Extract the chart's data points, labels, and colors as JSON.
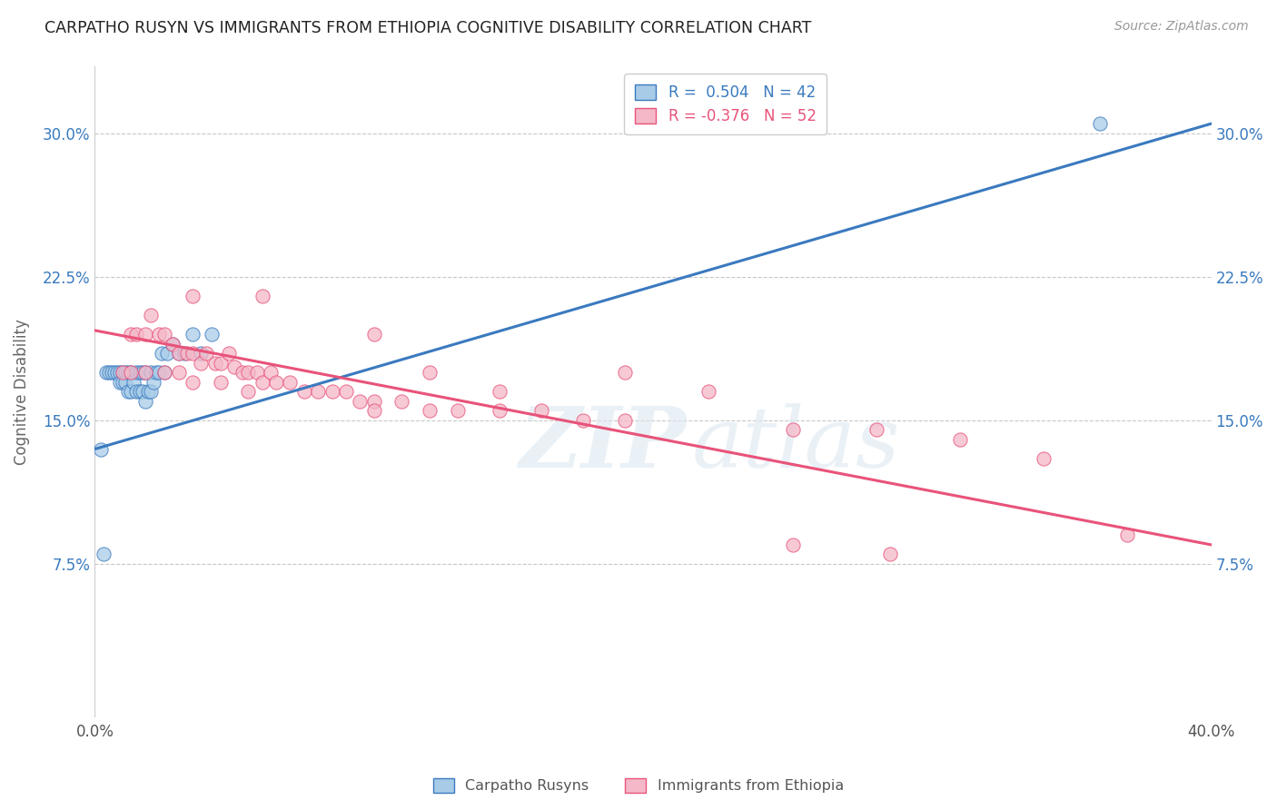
{
  "title": "CARPATHO RUSYN VS IMMIGRANTS FROM ETHIOPIA COGNITIVE DISABILITY CORRELATION CHART",
  "source": "Source: ZipAtlas.com",
  "ylabel": "Cognitive Disability",
  "x_tick_labels": [
    "0.0%",
    "",
    "",
    "",
    "",
    "",
    "",
    "",
    "40.0%"
  ],
  "y_ticks": [
    0.075,
    0.15,
    0.225,
    0.3
  ],
  "y_tick_labels": [
    "7.5%",
    "15.0%",
    "22.5%",
    "30.0%"
  ],
  "xlim": [
    0.0,
    0.4
  ],
  "ylim": [
    -0.005,
    0.335
  ],
  "blue_R": 0.504,
  "blue_N": 42,
  "pink_R": -0.376,
  "pink_N": 52,
  "blue_color": "#a8cce8",
  "pink_color": "#f4b8c8",
  "blue_line_color": "#3a7abf",
  "pink_line_color": "#e8537a",
  "watermark_zip": "ZIP",
  "watermark_atlas": "atlas",
  "blue_scatter_x": [
    0.002,
    0.004,
    0.005,
    0.006,
    0.007,
    0.008,
    0.009,
    0.009,
    0.01,
    0.01,
    0.011,
    0.011,
    0.012,
    0.012,
    0.013,
    0.013,
    0.014,
    0.015,
    0.015,
    0.016,
    0.016,
    0.017,
    0.017,
    0.018,
    0.018,
    0.019,
    0.02,
    0.02,
    0.021,
    0.022,
    0.023,
    0.024,
    0.025,
    0.026,
    0.028,
    0.03,
    0.032,
    0.035,
    0.038,
    0.042,
    0.003,
    0.36
  ],
  "blue_scatter_y": [
    0.135,
    0.175,
    0.175,
    0.175,
    0.175,
    0.175,
    0.175,
    0.17,
    0.175,
    0.17,
    0.175,
    0.17,
    0.175,
    0.165,
    0.175,
    0.165,
    0.17,
    0.175,
    0.165,
    0.175,
    0.165,
    0.175,
    0.165,
    0.175,
    0.16,
    0.165,
    0.175,
    0.165,
    0.17,
    0.175,
    0.175,
    0.185,
    0.175,
    0.185,
    0.19,
    0.185,
    0.185,
    0.195,
    0.185,
    0.195,
    0.08,
    0.305
  ],
  "pink_scatter_x": [
    0.01,
    0.013,
    0.015,
    0.018,
    0.02,
    0.023,
    0.025,
    0.028,
    0.03,
    0.03,
    0.033,
    0.035,
    0.038,
    0.04,
    0.043,
    0.045,
    0.048,
    0.05,
    0.053,
    0.055,
    0.058,
    0.06,
    0.063,
    0.065,
    0.07,
    0.075,
    0.08,
    0.085,
    0.09,
    0.095,
    0.1,
    0.11,
    0.12,
    0.13,
    0.145,
    0.16,
    0.175,
    0.19,
    0.22,
    0.25,
    0.28,
    0.31,
    0.34,
    0.37,
    0.013,
    0.018,
    0.025,
    0.035,
    0.045,
    0.055,
    0.1,
    0.25
  ],
  "pink_scatter_y": [
    0.175,
    0.195,
    0.195,
    0.195,
    0.205,
    0.195,
    0.195,
    0.19,
    0.185,
    0.175,
    0.185,
    0.185,
    0.18,
    0.185,
    0.18,
    0.18,
    0.185,
    0.178,
    0.175,
    0.175,
    0.175,
    0.17,
    0.175,
    0.17,
    0.17,
    0.165,
    0.165,
    0.165,
    0.165,
    0.16,
    0.16,
    0.16,
    0.155,
    0.155,
    0.155,
    0.155,
    0.15,
    0.15,
    0.165,
    0.145,
    0.145,
    0.14,
    0.13,
    0.09,
    0.175,
    0.175,
    0.175,
    0.17,
    0.17,
    0.165,
    0.155,
    0.085
  ],
  "pink_extra_x": [
    0.035,
    0.06,
    0.1,
    0.12,
    0.145,
    0.19,
    0.285
  ],
  "pink_extra_y": [
    0.215,
    0.215,
    0.195,
    0.175,
    0.165,
    0.175,
    0.08
  ]
}
